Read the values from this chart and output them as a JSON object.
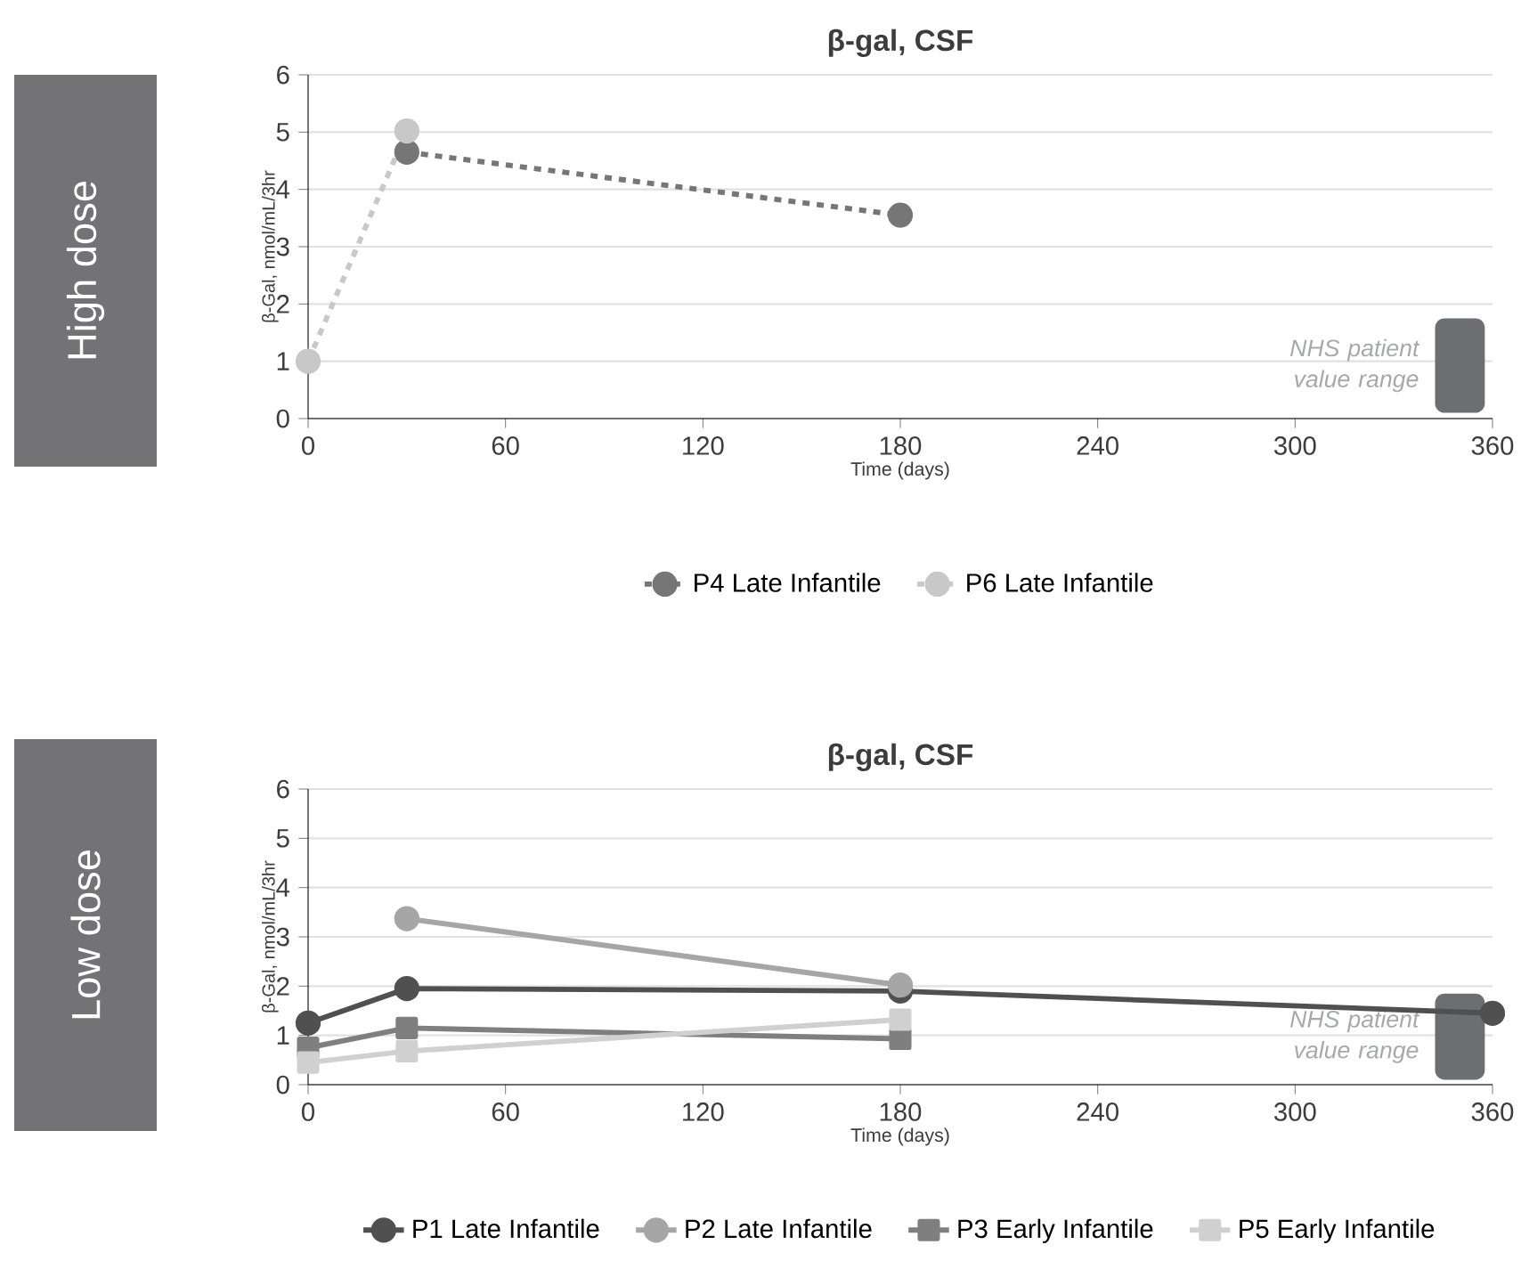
{
  "chart_data": [
    {
      "type": "line",
      "title": "β-gal, CSF",
      "subtitle": "High dose",
      "xlabel": "Time (days)",
      "ylabel": "β-Gal, nmol/mL/3hr",
      "xlim": [
        0,
        360
      ],
      "xticks": [
        0,
        60,
        120,
        180,
        240,
        300,
        360
      ],
      "ylim": [
        0,
        6
      ],
      "yticks": [
        0,
        1,
        2,
        3,
        4,
        5,
        6
      ],
      "grid": "y",
      "legend": "bottom",
      "line_style": "dashed",
      "marker": "circle",
      "bands": [
        {
          "axis": "y",
          "from": 0.1,
          "to": 1.75,
          "label": "NHS patient value range",
          "color": "#6d6e71"
        }
      ],
      "series": [
        {
          "name": "P4 Late Infantile",
          "color": "#767676",
          "x": [
            30,
            180
          ],
          "values": [
            4.65,
            3.55
          ]
        },
        {
          "name": "P6 Late Infantile",
          "color": "#c8c8c8",
          "x": [
            0,
            30
          ],
          "values": [
            1.0,
            5.02
          ]
        }
      ]
    },
    {
      "type": "line",
      "title": "β-gal, CSF",
      "subtitle": "Low dose",
      "xlabel": "Time (days)",
      "ylabel": "β-Gal, nmol/mL/3hr",
      "xlim": [
        0,
        360
      ],
      "xticks": [
        0,
        60,
        120,
        180,
        240,
        300,
        360
      ],
      "ylim": [
        0,
        6
      ],
      "yticks": [
        0,
        1,
        2,
        3,
        4,
        5,
        6
      ],
      "grid": "y",
      "legend": "bottom",
      "line_style": "solid",
      "marker": "circle",
      "bands": [
        {
          "axis": "y",
          "from": 0.1,
          "to": 1.85,
          "label": "NHS patient value range",
          "color": "#6d6e71"
        }
      ],
      "series": [
        {
          "name": "P1 Late Infantile",
          "color": "#505050",
          "x": [
            0,
            30,
            180,
            360
          ],
          "values": [
            1.25,
            1.95,
            1.9,
            1.45
          ]
        },
        {
          "name": "P2 Late Infantile",
          "color": "#a6a6a6",
          "x": [
            30,
            180
          ],
          "values": [
            3.37,
            2.02
          ]
        },
        {
          "name": "P3 Early Infantile",
          "color": "#7f7f7f",
          "marker": "square",
          "x": [
            0,
            30,
            180
          ],
          "values": [
            0.75,
            1.15,
            0.93
          ]
        },
        {
          "name": "P5 Early Infantile",
          "color": "#d0d0d0",
          "marker": "square",
          "x": [
            0,
            30,
            180
          ],
          "values": [
            0.45,
            0.68,
            1.32
          ]
        }
      ]
    }
  ]
}
